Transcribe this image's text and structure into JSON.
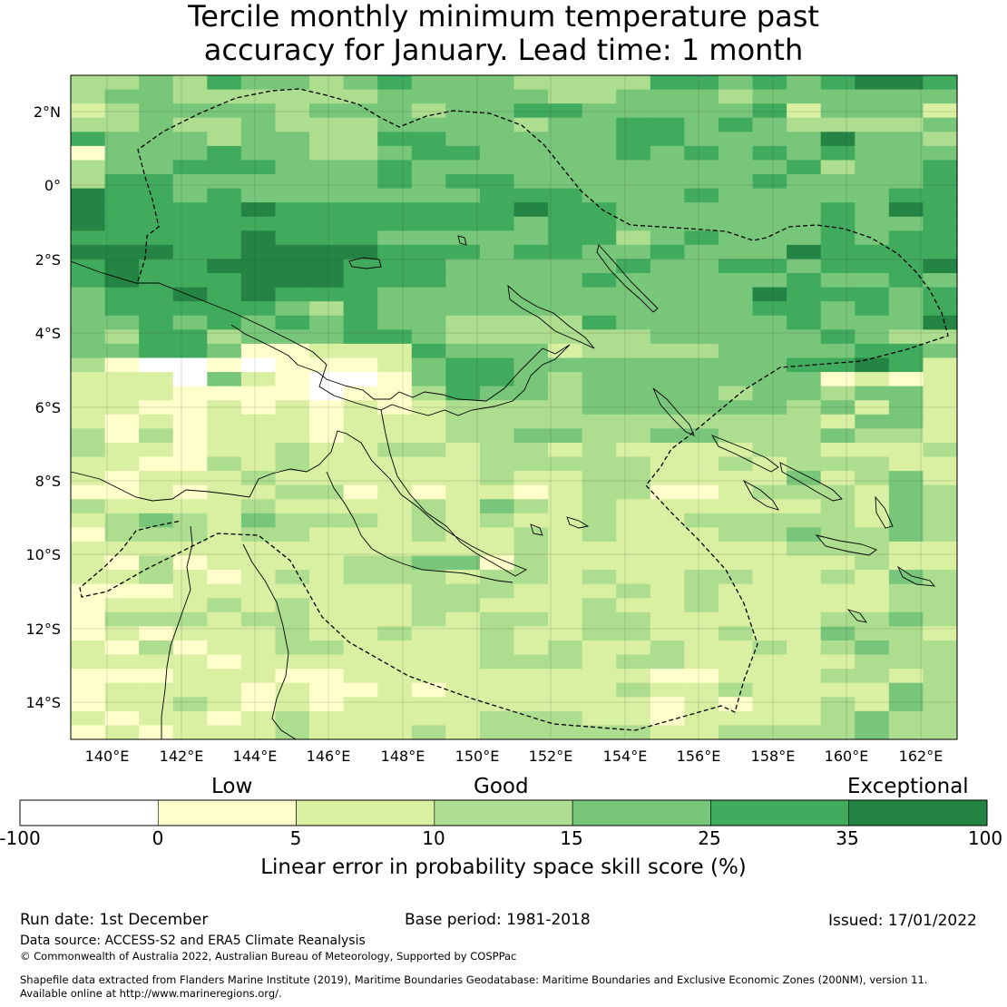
{
  "title": {
    "line1": "Tercile monthly minimum temperature past",
    "line2": "accuracy for January. Lead time: 1 month"
  },
  "map": {
    "lat_ticks": [
      "2°N",
      "0°",
      "2°S",
      "4°S",
      "6°S",
      "8°S",
      "10°S",
      "12°S",
      "14°S"
    ],
    "lon_ticks": [
      "140°E",
      "142°E",
      "144°E",
      "146°E",
      "148°E",
      "150°E",
      "152°E",
      "154°E",
      "156°E",
      "158°E",
      "160°E",
      "162°E"
    ],
    "category_colors": [
      "#ffffff",
      "#ffffcc",
      "#d9f0a3",
      "#addd8e",
      "#78c679",
      "#41ab5d",
      "#238443"
    ],
    "grid": [
      "33435443454443333554545665",
      "34433333344444334443444444",
      "23444434443445544444524442",
      "33433433344443445545433334",
      "54443443355444445544446443",
      "14445443345544445454545444",
      "34455544454444444444453445",
      "35544444454554444444544445",
      "65545444444455544454444455",
      "65555655555556554444445465",
      "65555555555554554444445445",
      "55555655544444553454445455",
      "66655666655545544544465555",
      "56556666555444445445545556",
      "56555666555444454444454454",
      "45565655544444444444655545",
      "45555543544444444444554545",
      "44545454544333354444454446",
      "43553444554333333444445433",
      "44554112225444233334444554",
      "31001011124554444444455652",
      "22204210014554344444441212",
      "22211110113544344443443442",
      "22112121212333344444434242",
      "21212221222333333333332442",
      "31312221222334433443334332",
      "32212232233233232222332223",
      "22113232222233333223233322",
      "21222322222232233222242342",
      "11212233121221233112333243",
      "32222322223243232222223243",
      "23432433323232232233333243",
      "13332332223223232223343343",
      "22222222222223222222233322",
      "21312222334413222222222322",
      "22321232333233232233223243",
      "11122222223332223232222233",
      "12223232223322232232222233",
      "13332332223233233222223343",
      "12122232232232233223224332",
      "21312233222232322322323433",
      "22221222222233323322222333",
      "11122211222222222112223323",
      "12222121121222223223222243",
      "12232121222222222121223243",
      "21221232222233322122223433",
      "12122232223233333223333433"
    ]
  },
  "colorbar": {
    "labels": {
      "low": "Low",
      "good": "Good",
      "exceptional": "Exceptional"
    },
    "bounds": [
      -100,
      0,
      5,
      10,
      15,
      25,
      35,
      100
    ],
    "bound_labels": [
      "-100",
      "0",
      "5",
      "10",
      "15",
      "25",
      "35",
      "100"
    ],
    "colors": [
      "#ffffff",
      "#ffffcc",
      "#d9f0a3",
      "#addd8e",
      "#78c679",
      "#41ab5d",
      "#238443"
    ],
    "title": "Linear error in probability space skill score (%)"
  },
  "footer": {
    "run_date": "Run date: 1st December",
    "base_period": "Base period: 1981-2018",
    "issued": "Issued: 17/01/2022",
    "data_source": "Data source: ACCESS-S2 and ERA5 Climate Reanalysis",
    "copyright": "© Commonwealth of Australia 2022, Australian Bureau of Meteorology, Supported by COSPPac",
    "shapefile_line1": "Shapefile data extracted from Flanders Marine Institute (2019), Maritime Boundaries Geodatabase: Maritime Boundaries and Exclusive Economic Zones (200NM), version 11.",
    "shapefile_line2": "Available online at http://www.marineregions.org/."
  }
}
